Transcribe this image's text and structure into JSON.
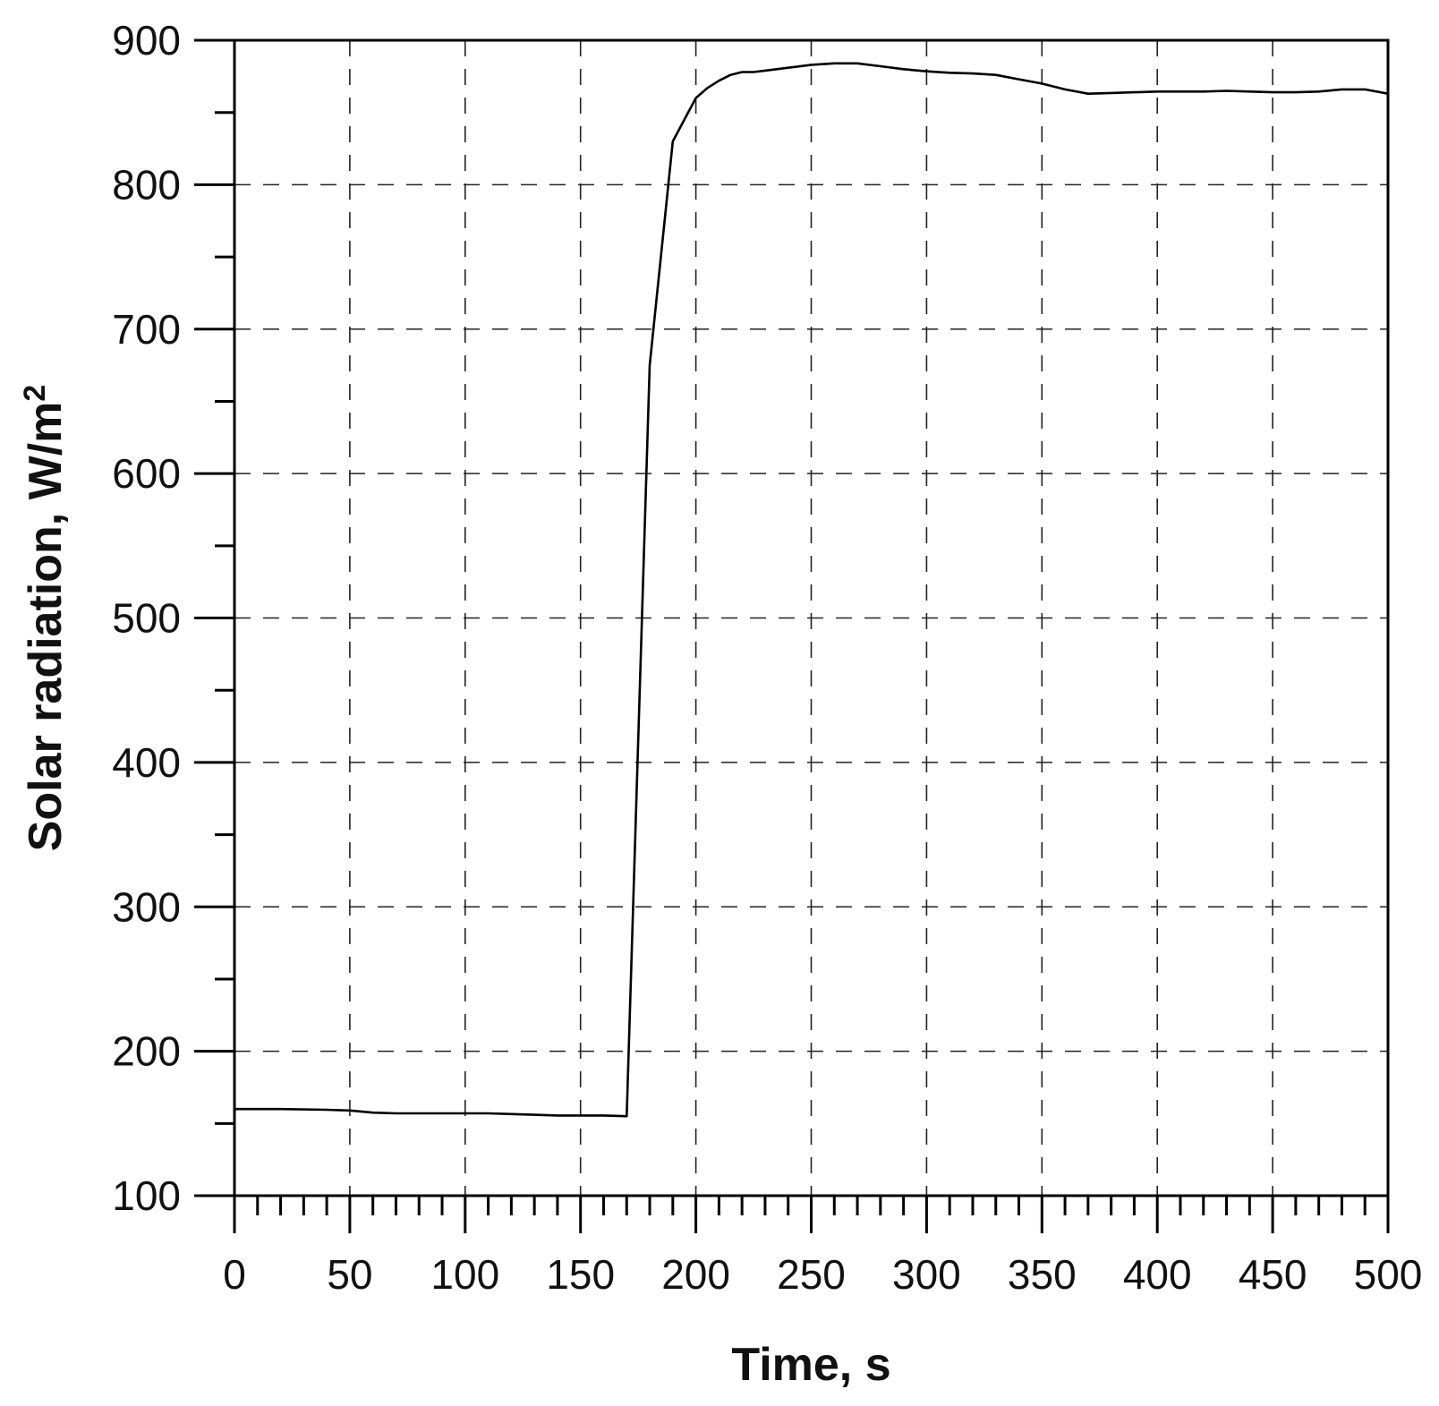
{
  "chart_data": {
    "type": "line",
    "title": "",
    "xlabel": "Time, s",
    "ylabel_text": "Solar radiation, W/m",
    "ylabel_superscript": "2",
    "xlim": [
      0,
      500
    ],
    "ylim": [
      100,
      900
    ],
    "x_ticks": [
      0,
      50,
      100,
      150,
      200,
      250,
      300,
      350,
      400,
      450,
      500
    ],
    "x_tick_labels": [
      "0",
      "50",
      "100",
      "150",
      "200",
      "250",
      "300",
      "350",
      "400",
      "450",
      "500"
    ],
    "x_minor_step": 10,
    "y_ticks": [
      100,
      200,
      300,
      400,
      500,
      600,
      700,
      800,
      900
    ],
    "y_tick_labels": [
      "100",
      "200",
      "300",
      "400",
      "500",
      "600",
      "700",
      "800",
      "900"
    ],
    "y_minor_step": 50,
    "grid": true,
    "grid_style": "dashed",
    "legend": "none",
    "series": [
      {
        "color": "#000000",
        "x": [
          0,
          20,
          40,
          50,
          60,
          70,
          80,
          90,
          100,
          110,
          120,
          130,
          140,
          150,
          160,
          170,
          180,
          190,
          200,
          205,
          210,
          215,
          220,
          225,
          230,
          240,
          250,
          260,
          270,
          280,
          290,
          300,
          310,
          320,
          330,
          340,
          350,
          360,
          370,
          380,
          390,
          400,
          410,
          420,
          430,
          440,
          450,
          460,
          470,
          480,
          490,
          500
        ],
        "y": [
          160,
          160,
          159.5,
          159,
          157.5,
          157,
          157,
          157,
          157,
          157,
          156.5,
          156,
          155.5,
          155.5,
          155.5,
          155,
          675,
          830,
          860,
          867,
          872,
          876,
          878,
          878,
          879,
          881,
          883,
          884,
          884,
          882,
          880,
          878.5,
          877.5,
          877,
          876,
          873,
          870,
          866,
          863,
          863.5,
          864,
          864.5,
          864.5,
          864.5,
          865,
          864.5,
          864,
          864,
          864.5,
          866,
          866,
          863
        ]
      }
    ]
  }
}
